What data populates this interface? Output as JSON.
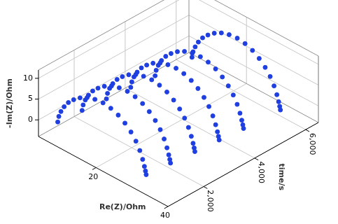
{
  "chart_data": {
    "type": "scatter3d",
    "x_label": "Re(Z)/Ohm",
    "y_label": "-Im(Z)/Ohm",
    "z_label": "time/s",
    "xlim": [
      4,
      40
    ],
    "xticks": [
      20,
      40
    ],
    "ylim": [
      -4,
      12
    ],
    "yticks": [
      0,
      5,
      10
    ],
    "zlim": [
      600,
      6500
    ],
    "zticks": [
      {
        "value": 2000,
        "label": "2,000"
      },
      {
        "value": 4000,
        "label": "4,000"
      },
      {
        "value": 6000,
        "label": "6,000"
      }
    ],
    "grid": true,
    "color": "#1f3fe0",
    "marker": "circle",
    "series": [
      {
        "time": 1000,
        "x": [
          6.0,
          6.3,
          6.9,
          7.8,
          9.0,
          10.5,
          12.3,
          14.3,
          16.5,
          18.8,
          21.0,
          23.1,
          25.0,
          26.7,
          28.1,
          29.2,
          30.0,
          30.5,
          30.8,
          31.0
        ],
        "y": [
          -1.0,
          0.5,
          2.0,
          3.6,
          5.2,
          6.6,
          7.9,
          8.9,
          9.5,
          9.7,
          9.4,
          8.7,
          7.6,
          6.2,
          4.6,
          2.8,
          1.0,
          -0.5,
          -1.5,
          -2.3
        ]
      },
      {
        "time": 1900,
        "x": [
          6.5,
          6.8,
          7.4,
          8.3,
          9.5,
          11.0,
          12.8,
          14.8,
          17.0,
          19.3,
          21.5,
          23.6,
          25.5,
          27.2,
          28.6,
          29.7,
          30.5,
          31.0,
          31.3,
          31.5
        ],
        "y": [
          -1.0,
          0.5,
          2.0,
          3.6,
          5.2,
          6.6,
          7.9,
          8.9,
          9.5,
          9.7,
          9.4,
          8.7,
          7.6,
          6.2,
          4.6,
          2.8,
          1.0,
          -0.5,
          -1.5,
          -2.3
        ]
      },
      {
        "time": 2800,
        "x": [
          7.0,
          7.3,
          7.9,
          8.8,
          10.0,
          11.5,
          13.3,
          15.3,
          17.5,
          19.8,
          22.0,
          24.1,
          26.0,
          27.7,
          29.1,
          30.2,
          31.0,
          31.5,
          31.8,
          32.0
        ],
        "y": [
          -1.0,
          0.5,
          2.0,
          3.6,
          5.2,
          6.6,
          7.9,
          8.9,
          9.5,
          9.7,
          9.4,
          8.7,
          7.6,
          6.2,
          4.6,
          2.8,
          1.0,
          -0.5,
          -1.5,
          -2.3
        ]
      },
      {
        "time": 3700,
        "x": [
          7.5,
          7.8,
          8.4,
          9.3,
          10.5,
          12.0,
          13.8,
          15.8,
          18.0,
          20.3,
          22.5,
          24.6,
          26.5,
          28.2,
          29.6,
          30.7,
          31.5,
          32.0,
          32.3,
          32.5
        ],
        "y": [
          -1.0,
          0.5,
          2.0,
          3.6,
          5.2,
          6.6,
          7.9,
          8.9,
          9.5,
          9.7,
          9.4,
          8.7,
          7.6,
          6.2,
          4.6,
          2.8,
          1.0,
          -0.5,
          -1.5,
          -2.3
        ]
      },
      {
        "time": 4600,
        "x": [
          8.0,
          8.3,
          8.9,
          9.8,
          11.0,
          12.5,
          14.3,
          16.3,
          18.5,
          20.8,
          23.0,
          25.1,
          27.0,
          28.7,
          30.1,
          31.2,
          32.0,
          32.5,
          32.8,
          33.0
        ],
        "y": [
          -1.0,
          0.5,
          2.0,
          3.6,
          5.2,
          6.6,
          7.9,
          8.9,
          9.5,
          9.7,
          9.4,
          8.7,
          7.6,
          6.2,
          4.6,
          2.8,
          1.0,
          -0.5,
          -1.5,
          -2.3
        ]
      },
      {
        "time": 6000,
        "x": [
          8.5,
          8.8,
          9.4,
          10.3,
          11.5,
          13.0,
          14.8,
          16.8,
          19.0,
          21.3,
          23.5,
          25.6,
          27.5,
          29.2,
          30.6,
          31.7,
          32.5,
          33.0,
          33.3,
          33.5
        ],
        "y": [
          -1.0,
          0.5,
          2.0,
          3.6,
          5.2,
          6.6,
          7.9,
          8.9,
          9.5,
          9.7,
          9.4,
          8.7,
          7.6,
          6.2,
          4.6,
          2.8,
          1.0,
          -0.5,
          -1.5,
          -2.3
        ]
      }
    ]
  }
}
